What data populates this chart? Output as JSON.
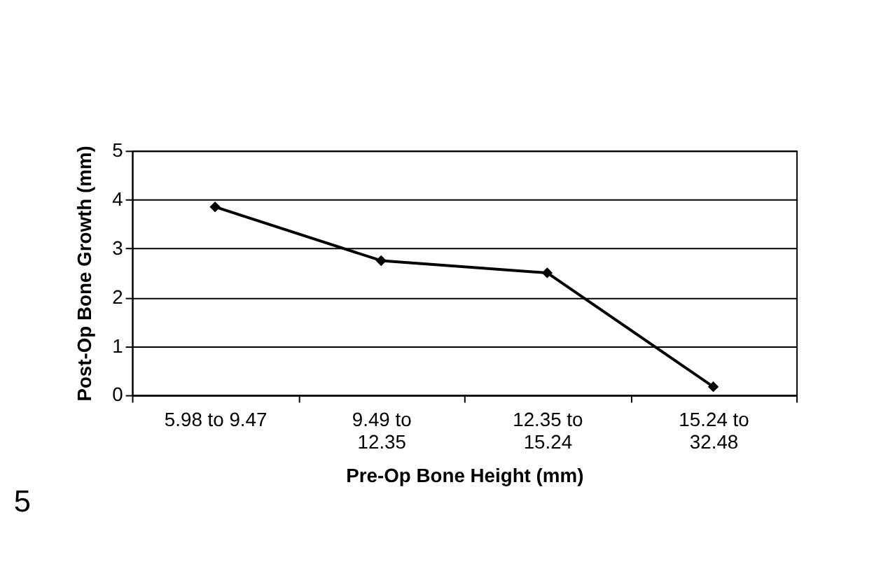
{
  "chart_data": {
    "type": "line",
    "xlabel": "Pre-Op Bone Height (mm)",
    "ylabel": "Post-Op Bone Growth (mm)",
    "categories": [
      "5.98 to 9.47",
      "9.49 to 12.35",
      "12.35 to 15.24",
      "15.24 to 32.48"
    ],
    "series": [
      {
        "color": "#000000",
        "values": [
          3.85,
          2.75,
          2.5,
          0.17
        ]
      }
    ],
    "ylim": [
      0,
      5
    ],
    "yticks": [
      0,
      1,
      2,
      3,
      4,
      5
    ],
    "grid": "y",
    "marker": "diamond",
    "line_style": "solid",
    "annotations": [
      "5"
    ]
  }
}
